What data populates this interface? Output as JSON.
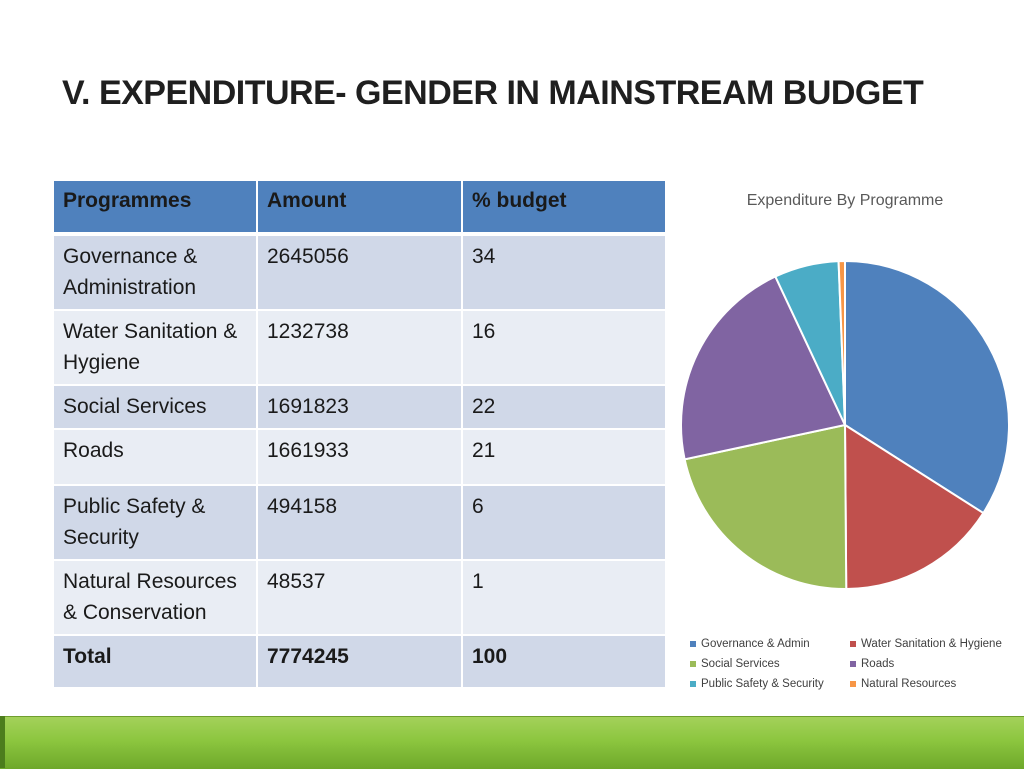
{
  "slide": {
    "title": "V. EXPENDITURE- GENDER IN MAINSTREAM BUDGET"
  },
  "table": {
    "headers": [
      "Programmes",
      "Amount",
      "% budget"
    ],
    "rows": [
      [
        "Governance & Administration",
        "2645056",
        "34"
      ],
      [
        "Water Sanitation & Hygiene",
        "1232738",
        "16"
      ],
      [
        "Social Services",
        "1691823",
        "22"
      ],
      [
        "Roads",
        "1661933",
        "21"
      ],
      [
        "Public Safety & Security",
        "494158",
        "6"
      ],
      [
        "Natural Resources & Conservation",
        "48537",
        "1"
      ]
    ],
    "total": [
      "Total",
      "7774245",
      "100"
    ]
  },
  "chart_data": {
    "type": "pie",
    "title": "Expenditure By Programme",
    "categories": [
      "Governance & Admin",
      "Water Sanitation & Hygiene",
      "Social Services",
      "Roads",
      "Public Safety & Security",
      "Natural Resources"
    ],
    "values": [
      2645056,
      1232738,
      1691823,
      1661933,
      494158,
      48537
    ],
    "colors": [
      "#4f81bd",
      "#c0504d",
      "#9bbb59",
      "#8064a2",
      "#4bacc6",
      "#f79646"
    ],
    "legend_position": "bottom"
  }
}
